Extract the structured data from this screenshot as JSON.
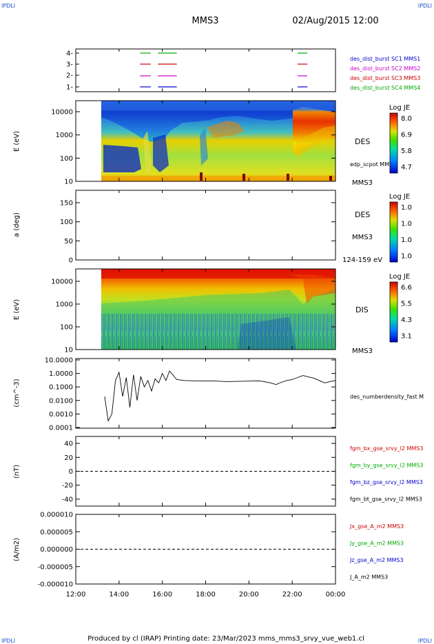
{
  "page": {
    "corner_label": "IPDLI",
    "mission": "MMS3",
    "date_time": "02/Aug/2015 12:00",
    "footer": "Produced by cl (IRAP)   Printing date: 23/Mar/2023   mms_mms3_srvy_vue_web1.cl"
  },
  "chart_data": [
    {
      "type": "line",
      "panel": "burst-availability",
      "yticks": [
        "4",
        "3",
        "2",
        "1"
      ],
      "legend": [
        {
          "label": "des_dist_burst SC1 MMS1",
          "color": "#0000cc"
        },
        {
          "label": "des_dist_burst SC2 MMS2",
          "color": "#cc00cc"
        },
        {
          "label": "des_dist_burst SC3 MMS3",
          "color": "#cc0000"
        },
        {
          "label": "des_dist_burst SC4 MMS4",
          "color": "#00aa00"
        }
      ],
      "series": [
        {
          "level": 4,
          "color": "#00aa00",
          "intervals": [
            [
              "14:58",
              "15:28"
            ],
            [
              "15:48",
              "16:40"
            ],
            [
              "22:15",
              "22:42"
            ]
          ]
        },
        {
          "level": 3,
          "color": "#cc0000",
          "intervals": [
            [
              "14:58",
              "15:28"
            ],
            [
              "15:48",
              "16:40"
            ],
            [
              "22:15",
              "22:42"
            ]
          ]
        },
        {
          "level": 2,
          "color": "#cc00cc",
          "intervals": [
            [
              "14:58",
              "15:28"
            ],
            [
              "15:48",
              "16:40"
            ],
            [
              "22:15",
              "22:42"
            ]
          ]
        },
        {
          "level": 1,
          "color": "#0000cc",
          "intervals": [
            [
              "14:58",
              "15:28"
            ],
            [
              "15:48",
              "16:40"
            ],
            [
              "22:15",
              "22:42"
            ]
          ]
        }
      ]
    },
    {
      "type": "heatmap",
      "panel": "des-energy",
      "ylabel": "E (eV)",
      "yscale": "log",
      "ylim": [
        10,
        30000
      ],
      "yticks": [
        "10000",
        "1000",
        "100",
        "10"
      ],
      "instrument": "DES",
      "spacecraft": "MMS3",
      "overlay_label": "edp_scpot MMS3",
      "colorbar": {
        "title": "Log JE",
        "ticks": [
          "8.0",
          "6.9",
          "5.8",
          "4.7"
        ]
      },
      "data_start": "13:12"
    },
    {
      "type": "heatmap",
      "panel": "des-pitch-angle",
      "ylabel": "a (deg)",
      "ylim": [
        0,
        180
      ],
      "yticks": [
        "150",
        "100",
        "50",
        "0"
      ],
      "instrument": "DES",
      "spacecraft": "MMS3",
      "energy_range": "124-159 eV",
      "colorbar": {
        "title": "Log JE",
        "ticks": [
          "1.0",
          "1.0",
          "1.0",
          "1.0"
        ]
      }
    },
    {
      "type": "heatmap",
      "panel": "dis-energy",
      "ylabel": "E (eV)",
      "yscale": "log",
      "ylim": [
        10,
        30000
      ],
      "yticks": [
        "10000",
        "1000",
        "100",
        "10"
      ],
      "instrument": "DIS",
      "spacecraft": "MMS3",
      "colorbar": {
        "title": "Log JE",
        "ticks": [
          "6.6",
          "5.5",
          "4.3",
          "3.1"
        ]
      },
      "data_start": "13:12"
    },
    {
      "type": "line",
      "panel": "number-density",
      "ylabel": "(cm^-3)",
      "yscale": "log",
      "ylim": [
        0.0001,
        10
      ],
      "yticks": [
        "10.0000",
        "1.0000",
        "0.1000",
        "0.0100",
        "0.0010",
        "0.0001"
      ],
      "legend": [
        {
          "label": "des_numberdensity_fast M",
          "color": "#000000"
        }
      ],
      "x": [
        "13:20",
        "13:30",
        "13:40",
        "13:50",
        "14:00",
        "14:10",
        "14:20",
        "14:30",
        "14:40",
        "14:50",
        "15:00",
        "15:10",
        "15:20",
        "15:30",
        "15:40",
        "15:50",
        "16:00",
        "16:10",
        "16:20",
        "16:40",
        "17:00",
        "17:30",
        "18:00",
        "18:30",
        "19:00",
        "19:30",
        "20:00",
        "20:30",
        "21:00",
        "21:15",
        "21:30",
        "21:45",
        "22:00",
        "22:15",
        "22:30",
        "22:45",
        "23:00",
        "23:15",
        "23:30",
        "23:45",
        "00:00"
      ],
      "values": [
        0.02,
        0.0003,
        0.001,
        0.3,
        1.2,
        0.02,
        0.5,
        0.003,
        0.8,
        0.01,
        0.6,
        0.1,
        0.3,
        0.05,
        0.4,
        0.2,
        1.0,
        0.3,
        1.5,
        0.35,
        0.3,
        0.28,
        0.28,
        0.27,
        0.25,
        0.26,
        0.27,
        0.28,
        0.2,
        0.15,
        0.22,
        0.3,
        0.35,
        0.5,
        0.7,
        0.55,
        0.45,
        0.3,
        0.2,
        0.25,
        0.3
      ]
    },
    {
      "type": "line",
      "panel": "magnetic-field",
      "ylabel": "(nT)",
      "ylim": [
        -50,
        50
      ],
      "yticks": [
        "40",
        "20",
        "0",
        "-20",
        "-40"
      ],
      "legend": [
        {
          "label": "fgm_bx_gse_srvy_l2 MMS3",
          "color": "#cc0000"
        },
        {
          "label": "fgm_by_gse_srvy_l2 MMS3",
          "color": "#00aa00"
        },
        {
          "label": "fgm_bz_gse_srvy_l2 MMS3",
          "color": "#0000cc"
        },
        {
          "label": "fgm_bt_gse_srvy_l2 MMS3",
          "color": "#000000"
        }
      ],
      "reference_line": 0
    },
    {
      "type": "line",
      "panel": "current-density",
      "ylabel": "(A/m2)",
      "ylim": [
        -1e-05,
        1e-05
      ],
      "yticks": [
        "0.000010",
        "0.000005",
        "0.000000",
        "-0.000005",
        "-0.000010"
      ],
      "legend": [
        {
          "label": "Jx_gse_A_m2 MMS3",
          "color": "#cc0000"
        },
        {
          "label": "Jy_gse_A_m2 MMS3",
          "color": "#00aa00"
        },
        {
          "label": "Jz_gse_A_m2 MMS3",
          "color": "#0000cc"
        },
        {
          "label": "J_A_m2 MMS3",
          "color": "#000000"
        }
      ],
      "reference_line": 0
    }
  ],
  "xaxis": {
    "ticks": [
      "12:00",
      "14:00",
      "16:00",
      "18:00",
      "20:00",
      "22:00",
      "00:00"
    ]
  }
}
